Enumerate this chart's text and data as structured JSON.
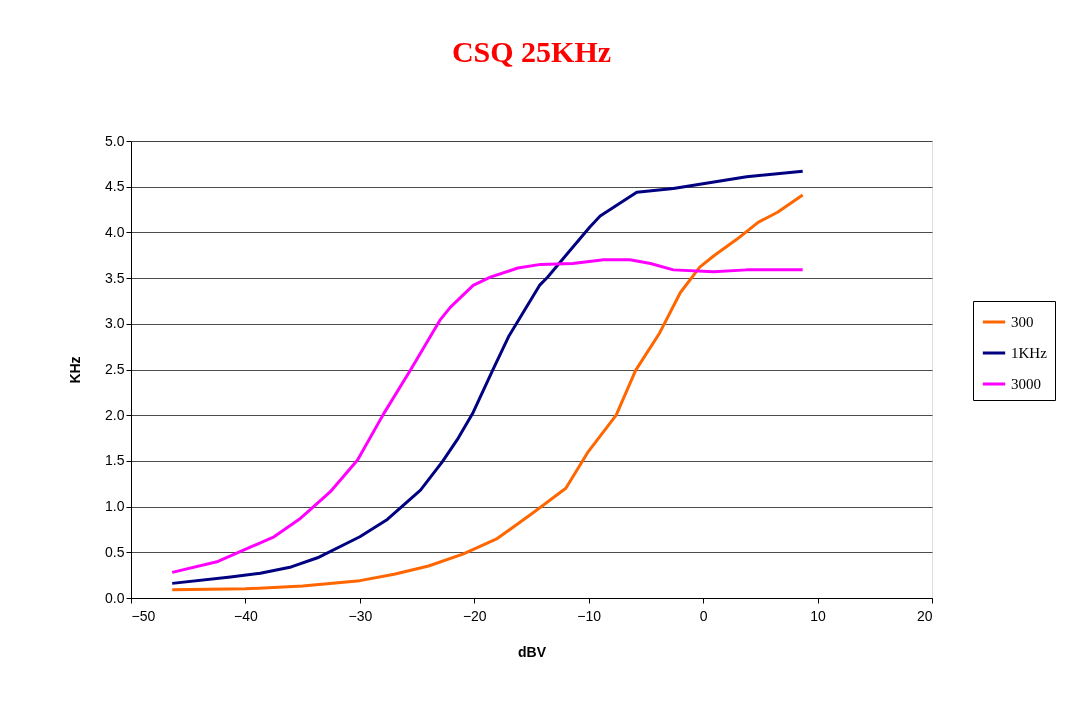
{
  "chart_data": {
    "type": "line",
    "title": "CSQ 25KHz",
    "xlabel": "dBV",
    "ylabel": "KHz",
    "xlim": [
      -50,
      20
    ],
    "xticks": [
      -50,
      -40,
      -30,
      -20,
      -10,
      0,
      10,
      20
    ],
    "ylim": [
      0,
      5
    ],
    "yticks": [
      {
        "value": 0,
        "label": "0.0"
      },
      {
        "value": 0.5,
        "label": "0.5"
      },
      {
        "value": 1,
        "label": "1.0"
      },
      {
        "value": 1.5,
        "label": "1.5"
      },
      {
        "value": 2,
        "label": "2.0"
      },
      {
        "value": 2.5,
        "label": "2.5"
      },
      {
        "value": 3,
        "label": "3.0"
      },
      {
        "value": 3.5,
        "label": "3.5"
      },
      {
        "value": 4,
        "label": "4.0"
      },
      {
        "value": 4.5,
        "label": "4.5"
      },
      {
        "value": 5,
        "label": "5.0"
      }
    ],
    "grid": "y",
    "legend": "right",
    "marker": "none",
    "line_style": "solid",
    "series": [
      {
        "name": "300",
        "color": "#ff6600",
        "x": [
          -46.4,
          -40,
          -35,
          -30,
          -27,
          -24,
          -21,
          -18,
          -15.1,
          -12,
          -10.1,
          -7.6,
          -5.9,
          -3.8,
          -2,
          -0.3,
          1,
          3,
          4.8,
          6.5,
          8.7
        ],
        "values": [
          0.09,
          0.1,
          0.13,
          0.19,
          0.26,
          0.35,
          0.48,
          0.65,
          0.91,
          1.2,
          1.59,
          2.0,
          2.49,
          2.9,
          3.34,
          3.62,
          3.75,
          3.93,
          4.11,
          4.22,
          4.41
        ]
      },
      {
        "name": "1KHz",
        "color": "#000080",
        "x": [
          -46.4,
          -41.3,
          -38.7,
          -36,
          -33.7,
          -30,
          -27.6,
          -24.7,
          -22.8,
          -21.4,
          -20.1,
          -18.4,
          -17,
          -14.3,
          -13.6,
          -9.9,
          -9,
          -5.8,
          -2.6,
          3.8,
          8.7
        ],
        "values": [
          0.16,
          0.23,
          0.27,
          0.34,
          0.44,
          0.67,
          0.86,
          1.18,
          1.49,
          1.75,
          2.03,
          2.49,
          2.86,
          3.42,
          3.51,
          4.06,
          4.18,
          4.44,
          4.48,
          4.61,
          4.67
        ]
      },
      {
        "name": "3000",
        "color": "#ff00ff",
        "x": [
          -46.4,
          -42.4,
          -37.5,
          -35.2,
          -32.6,
          -30.2,
          -27.9,
          -25.6,
          -23,
          -22.1,
          -20.1,
          -18.6,
          -16.2,
          -14.2,
          -11.4,
          -8.7,
          -6.4,
          -4.6,
          -2.6,
          0.9,
          3.8,
          8.7
        ],
        "values": [
          0.28,
          0.4,
          0.67,
          0.87,
          1.16,
          1.51,
          2.02,
          2.49,
          3.04,
          3.18,
          3.42,
          3.51,
          3.61,
          3.65,
          3.66,
          3.7,
          3.7,
          3.66,
          3.59,
          3.57,
          3.59,
          3.59
        ]
      }
    ]
  }
}
